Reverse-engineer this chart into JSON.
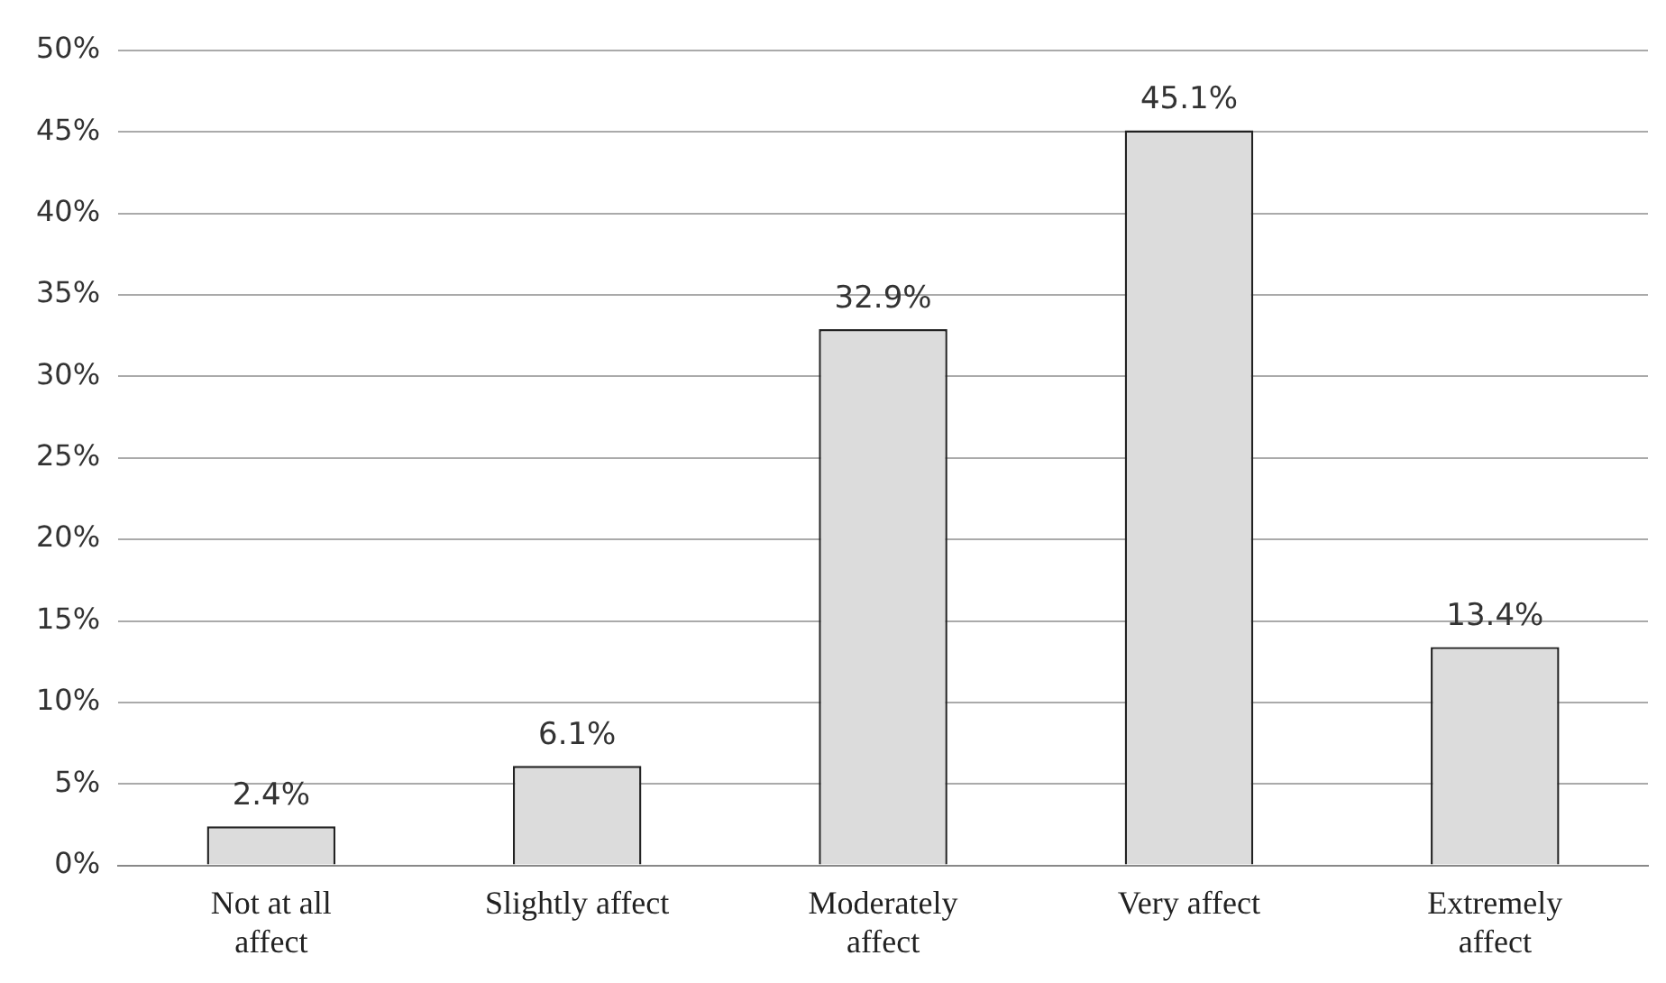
{
  "chart_data": {
    "type": "bar",
    "categories": [
      "Not at all affect",
      "Slightly affect",
      "Moderately affect",
      "Very affect",
      "Extremely affect"
    ],
    "values": [
      2.4,
      6.1,
      32.9,
      45.1,
      13.4
    ],
    "value_labels": [
      "2.4%",
      "6.1%",
      "32.9%",
      "45.1%",
      "13.4%"
    ],
    "color": "#dcdcdc",
    "ylim": [
      0,
      50
    ],
    "yticks": [
      {
        "value": 0,
        "label": "0%"
      },
      {
        "value": 5,
        "label": "5%"
      },
      {
        "value": 10,
        "label": "10%"
      },
      {
        "value": 15,
        "label": "15%"
      },
      {
        "value": 20,
        "label": "20%"
      },
      {
        "value": 25,
        "label": "25%"
      },
      {
        "value": 30,
        "label": "30%"
      },
      {
        "value": 35,
        "label": "35%"
      },
      {
        "value": 40,
        "label": "40%"
      },
      {
        "value": 45,
        "label": "45%"
      },
      {
        "value": 50,
        "label": "50%"
      }
    ],
    "grid": "y"
  }
}
